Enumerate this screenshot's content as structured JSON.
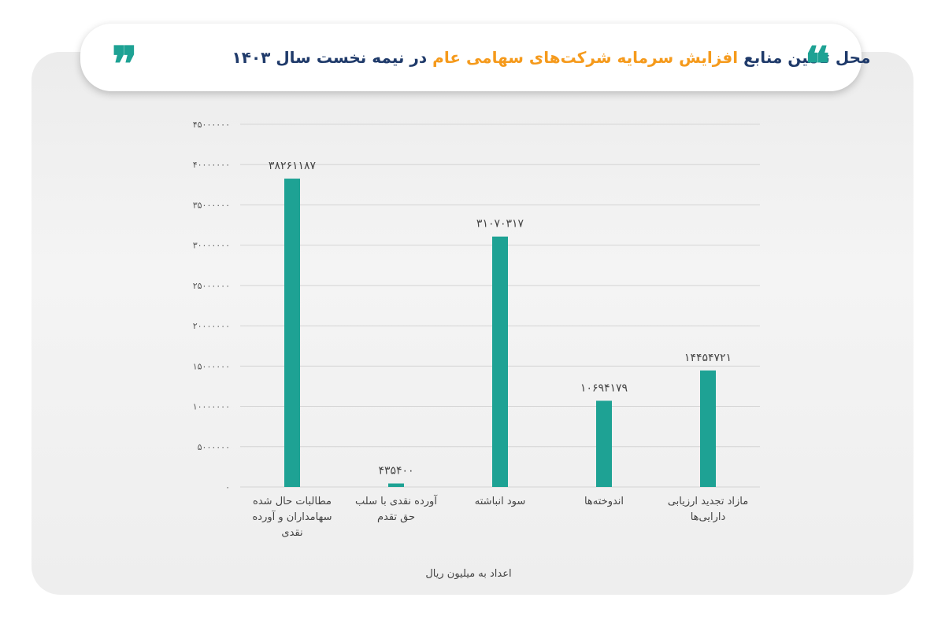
{
  "title": {
    "part1": "محل تامین منابع",
    "highlight": "افزایش سرمایه شرکت‌های سهامی عام",
    "part2": "در نیمه نخست سال ۱۴۰۳"
  },
  "unit_note": "اعداد به میلیون ریال",
  "colors": {
    "bar": "#1ea294",
    "title": "#1f3a6a",
    "highlight": "#f59a1c"
  },
  "chart_data": {
    "type": "bar",
    "categories": [
      [
        "مطالبات حال شده",
        "سهامداران  و آورده",
        "نقدی"
      ],
      [
        "آورده نقدی با سلب",
        "حق تقدم"
      ],
      [
        "سود انباشته"
      ],
      [
        "اندوخته‌ها"
      ],
      [
        "مازاد تجدید ارزیابی",
        "دارایی‌ها"
      ]
    ],
    "values": [
      38261187,
      435400,
      31070317,
      10694179,
      14454721
    ],
    "value_labels": [
      "۳۸۲۶۱۱۸۷",
      "۴۳۵۴۰۰",
      "۳۱۰۷۰۳۱۷",
      "۱۰۶۹۴۱۷۹",
      "۱۴۴۵۴۷۲۱"
    ],
    "y_ticks": [
      0,
      5000000,
      10000000,
      15000000,
      20000000,
      25000000,
      30000000,
      35000000,
      40000000,
      45000000
    ],
    "y_tick_labels": [
      "۰",
      "۵۰۰۰۰۰۰",
      "۱۰۰۰۰۰۰۰",
      "۱۵۰۰۰۰۰۰",
      "۲۰۰۰۰۰۰۰",
      "۲۵۰۰۰۰۰۰",
      "۳۰۰۰۰۰۰۰",
      "۳۵۰۰۰۰۰۰",
      "۴۰۰۰۰۰۰۰",
      "۴۵۰۰۰۰۰۰"
    ],
    "ylim": [
      0,
      45000000
    ],
    "grid": true,
    "xlabel": "اعداد به میلیون ریال",
    "ylabel": ""
  }
}
